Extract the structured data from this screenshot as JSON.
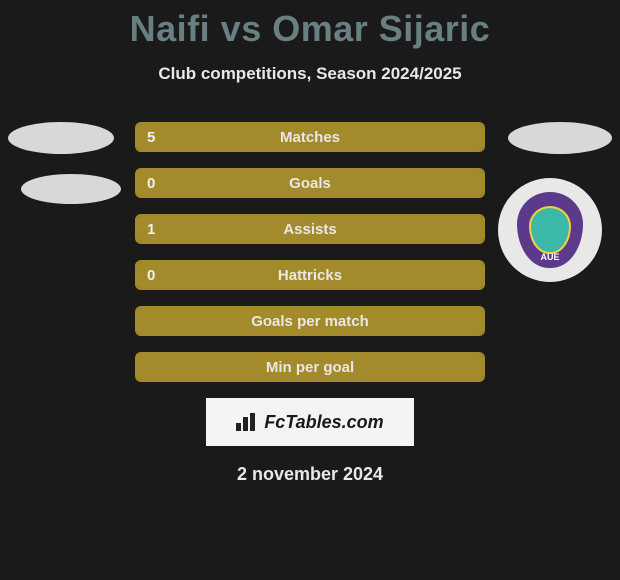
{
  "header": {
    "title": "Naifi vs Omar Sijaric",
    "subtitle": "Club competitions, Season 2024/2025"
  },
  "colors": {
    "background": "#1a1a1a",
    "title_color": "#688082",
    "bar_border": "#a38a2a",
    "bar_fill": "#a38a2a",
    "text": "#e8e8e8",
    "avatar_bg": "#d8d8d8",
    "club_outer": "#5b3a8c",
    "club_inner": "#3cb8a8",
    "club_inner_border": "#f0d040"
  },
  "club_badge": {
    "label": "AUE"
  },
  "stats": [
    {
      "label": "Matches",
      "value": "5",
      "fill_pct": 100
    },
    {
      "label": "Goals",
      "value": "0",
      "fill_pct": 100
    },
    {
      "label": "Assists",
      "value": "1",
      "fill_pct": 100
    },
    {
      "label": "Hattricks",
      "value": "0",
      "fill_pct": 100
    },
    {
      "label": "Goals per match",
      "value": "",
      "fill_pct": 100
    },
    {
      "label": "Min per goal",
      "value": "",
      "fill_pct": 100
    }
  ],
  "brand": {
    "text": "FcTables.com"
  },
  "date": "2 november 2024"
}
